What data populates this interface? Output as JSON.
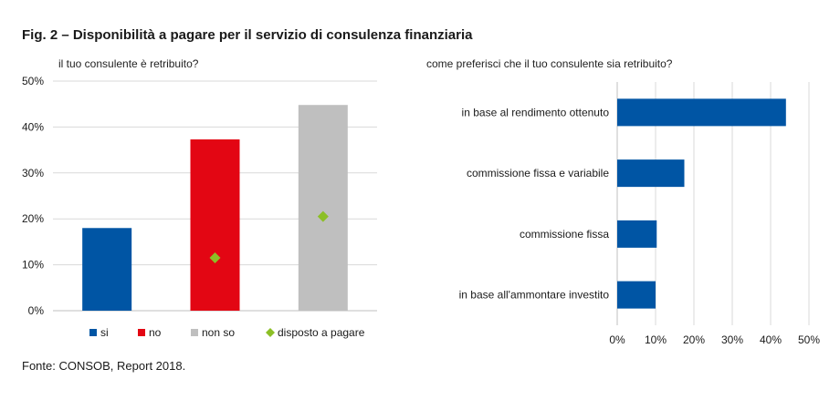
{
  "figure": {
    "title": "Fig. 2 – Disponibilità a pagare per il servizio di consulenza finanziaria",
    "source": "Fonte: CONSOB, Report 2018."
  },
  "colors": {
    "si": "#0055a4",
    "no": "#e30613",
    "non_so": "#bfbfbf",
    "disposto": "#8cbf26",
    "grid": "#d9d9d9",
    "bars_right": "#0055a4"
  },
  "chart_data": [
    {
      "type": "bar",
      "title": "il tuo consulente è retribuito?",
      "categories": [
        "si",
        "no",
        "non so"
      ],
      "series": [
        {
          "name": "si",
          "values": [
            18,
            null,
            null
          ]
        },
        {
          "name": "no",
          "values": [
            null,
            37.3,
            null
          ]
        },
        {
          "name": "non so",
          "values": [
            null,
            null,
            44.8
          ]
        },
        {
          "name": "disposto a pagare",
          "type": "scatter",
          "marker": "diamond",
          "values": [
            null,
            11.5,
            20.5
          ]
        }
      ],
      "ylim": [
        0,
        50
      ],
      "yticks": [
        "0%",
        "10%",
        "20%",
        "30%",
        "40%",
        "50%"
      ],
      "grid": true,
      "legend": [
        "si",
        "no",
        "non so",
        "disposto a pagare"
      ],
      "legend_position": "bottom"
    },
    {
      "type": "bar",
      "orientation": "horizontal",
      "title": "come preferisci che il tuo consulente sia retribuito?",
      "categories": [
        "in base al rendimento ottenuto",
        "commissione fissa e variabile",
        "commissione fissa",
        "in base all'ammontare investito"
      ],
      "values": [
        44,
        17.5,
        10.3,
        10
      ],
      "xlim": [
        0,
        50
      ],
      "xticks": [
        "0%",
        "10%",
        "20%",
        "30%",
        "40%",
        "50%"
      ],
      "grid": true
    }
  ]
}
